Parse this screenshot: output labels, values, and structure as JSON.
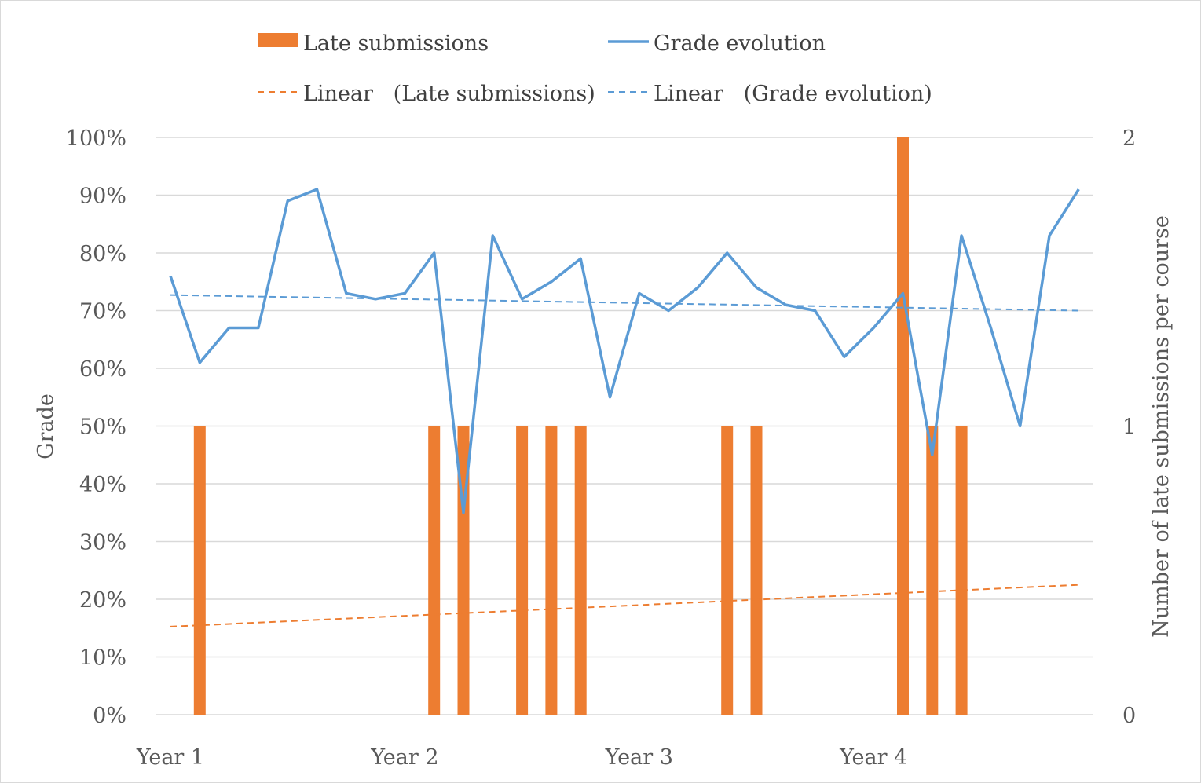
{
  "chart_data": {
    "type": "bar+line",
    "categories": [
      "Year 1",
      "",
      "",
      "",
      "",
      "",
      "",
      "",
      "Year 2",
      "",
      "",
      "",
      "",
      "",
      "",
      "",
      "Year 3",
      "",
      "",
      "",
      "",
      "",
      "",
      "",
      "Year 4",
      "",
      "",
      "",
      "",
      "",
      "",
      ""
    ],
    "x_tick_labels": [
      "Year 1",
      "Year 2",
      "Year 3",
      "Year 4"
    ],
    "ylabel": "Grade",
    "y2label": "Number of late submissions per course",
    "ylim": [
      0,
      1
    ],
    "y2lim": [
      0,
      2
    ],
    "y_ticks": [
      "0%",
      "10%",
      "20%",
      "30%",
      "40%",
      "50%",
      "60%",
      "70%",
      "80%",
      "90%",
      "100%"
    ],
    "y2_ticks": [
      "0",
      "1",
      "2"
    ],
    "grid": true,
    "legend_placement": "top",
    "series": [
      {
        "name": "Late submissions",
        "kind": "bar",
        "axis": "right",
        "color": "#ed7d31",
        "values": [
          0,
          1,
          0,
          0,
          0,
          0,
          0,
          0,
          0,
          1,
          1,
          0,
          1,
          1,
          1,
          0,
          0,
          0,
          0,
          1,
          1,
          0,
          0,
          0,
          0,
          2,
          1,
          1,
          0,
          0,
          0,
          0
        ]
      },
      {
        "name": "Grade evolution",
        "kind": "line",
        "axis": "left",
        "color": "#5b9bd5",
        "values": [
          0.76,
          0.61,
          0.67,
          0.67,
          0.89,
          0.91,
          0.73,
          0.72,
          0.73,
          0.8,
          0.35,
          0.83,
          0.72,
          0.75,
          0.79,
          0.55,
          0.73,
          0.7,
          0.74,
          0.8,
          0.74,
          0.71,
          0.7,
          0.62,
          0.67,
          0.73,
          0.45,
          0.83,
          0.67,
          0.5,
          0.83,
          0.91
        ]
      }
    ],
    "trendlines": [
      {
        "name": "Linear   (Late submissions)",
        "of": "Late submissions",
        "axis": "right",
        "color": "#ed7d31",
        "dashed": true,
        "start": 0.305,
        "end": 0.45
      },
      {
        "name": "Linear   (Grade evolution)",
        "of": "Grade evolution",
        "axis": "left",
        "color": "#5b9bd5",
        "dashed": true,
        "start": 0.727,
        "end": 0.7
      }
    ]
  }
}
